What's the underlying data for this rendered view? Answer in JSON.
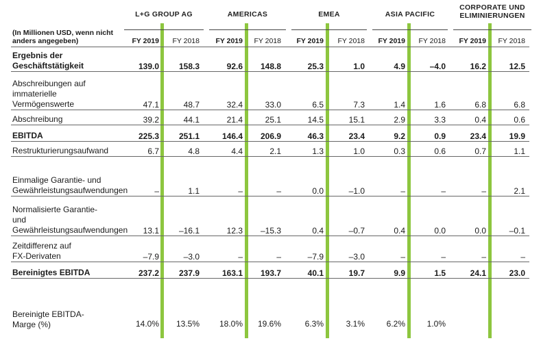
{
  "groups": [
    {
      "name": "L+G GROUP AG"
    },
    {
      "name": "AMERICAS"
    },
    {
      "name": "EMEA"
    },
    {
      "name": "ASIA PACIFIC"
    },
    {
      "name": "CORPORATE UND ELIMINIERUNGEN",
      "line1": "CORPORATE UND",
      "line2": "ELIMINIERUNGEN"
    }
  ],
  "unit_label": "(In Millionen USD, wenn nicht anders angegeben)",
  "years": [
    "FY 2019",
    "FY 2018"
  ],
  "rows": [
    {
      "label": "Ergebnis der Geschäftstätigkeit",
      "bold": true,
      "values": [
        "139.0",
        "158.3",
        "92.6",
        "148.8",
        "25.3",
        "1.0",
        "4.9",
        "–4.0",
        "16.2",
        "12.5"
      ]
    },
    {
      "label": "Abschreibungen auf immaterielle Vermögenswerte",
      "bold": false,
      "values": [
        "47.1",
        "48.7",
        "32.4",
        "33.0",
        "6.5",
        "7.3",
        "1.4",
        "1.6",
        "6.8",
        "6.8"
      ]
    },
    {
      "label": "Abschreibung",
      "bold": false,
      "values": [
        "39.2",
        "44.1",
        "21.4",
        "25.1",
        "14.5",
        "15.1",
        "2.9",
        "3.3",
        "0.4",
        "0.6"
      ]
    },
    {
      "label": "EBITDA",
      "bold": true,
      "values": [
        "225.3",
        "251.1",
        "146.4",
        "206.9",
        "46.3",
        "23.4",
        "9.2",
        "0.9",
        "23.4",
        "19.9"
      ]
    },
    {
      "label": "Restrukturierungsaufwand",
      "bold": false,
      "values": [
        "6.7",
        "4.8",
        "4.4",
        "2.1",
        "1.3",
        "1.0",
        "0.3",
        "0.6",
        "0.7",
        "1.1"
      ]
    },
    {
      "label": "Einmalige Garantie- und Gewährleistungsaufwendungen",
      "bold": false,
      "values": [
        "–",
        "1.1",
        "–",
        "–",
        "0.0",
        "–1.0",
        "–",
        "–",
        "–",
        "2.1"
      ]
    },
    {
      "label": "Normalisierte Garantie- und Gewährleistungsaufwendungen",
      "bold": false,
      "values": [
        "13.1",
        "–16.1",
        "12.3",
        "–15.3",
        "0.4",
        "–0.7",
        "0.4",
        "0.0",
        "0.0",
        "–0.1"
      ]
    },
    {
      "label": "Zeitdifferenz auf FX-Derivaten",
      "bold": false,
      "values": [
        "–7.9",
        "–3.0",
        "–",
        "–",
        "–7.9",
        "–3.0",
        "–",
        "–",
        "–",
        "–"
      ]
    },
    {
      "label": "Bereinigtes EBITDA",
      "bold": true,
      "values": [
        "237.2",
        "237.9",
        "163.1",
        "193.7",
        "40.1",
        "19.7",
        "9.9",
        "1.5",
        "24.1",
        "23.0"
      ]
    },
    {
      "label": "Bereinigte EBITDA-Marge (%)",
      "bold": false,
      "values": [
        "14.0%",
        "13.5%",
        "18.0%",
        "19.6%",
        "6.3%",
        "3.1%",
        "6.2%",
        "1.0%",
        "",
        ""
      ]
    }
  ],
  "colors": {
    "accent_green": "#8dc63f"
  }
}
